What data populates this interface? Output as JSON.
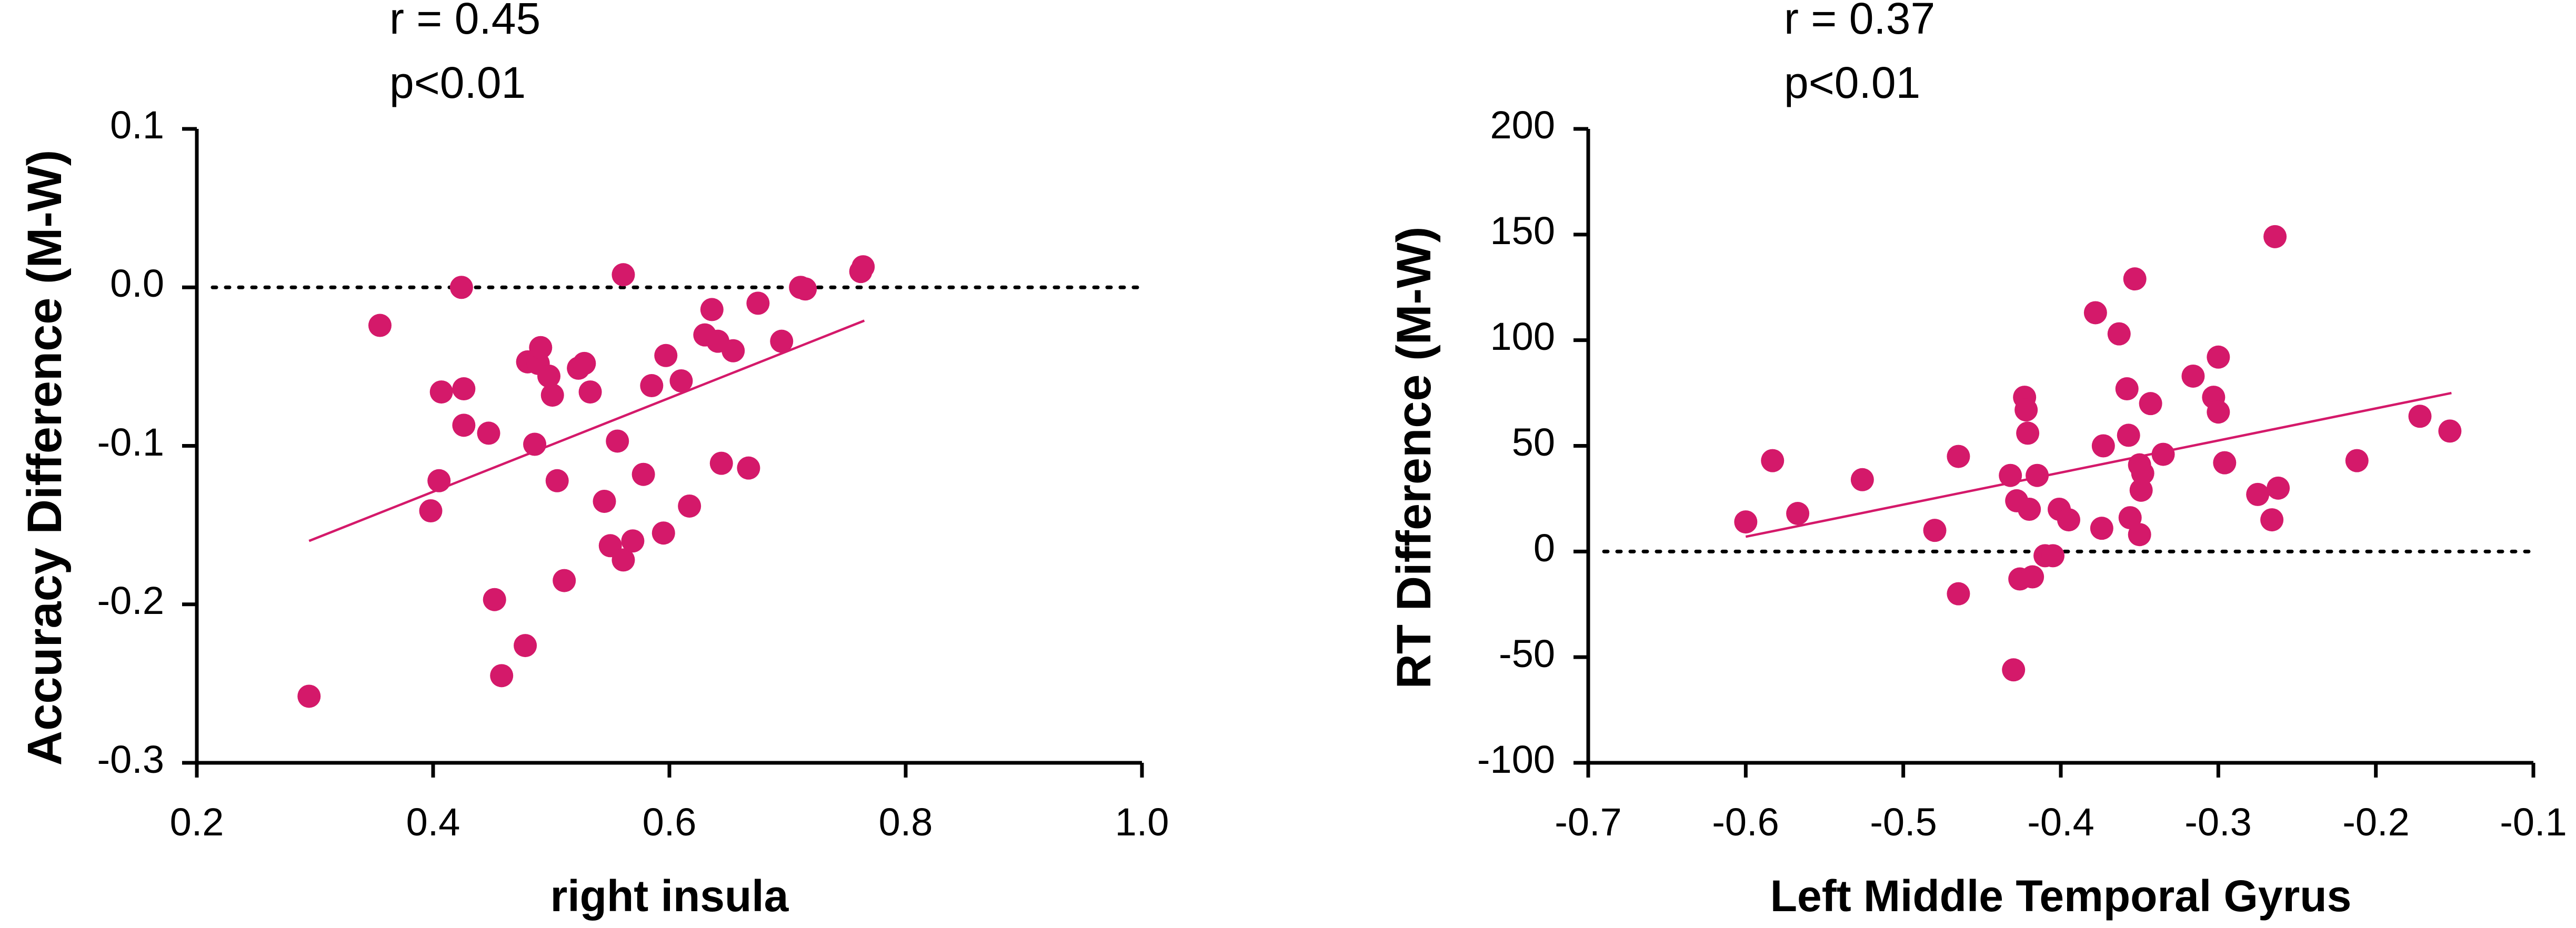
{
  "chart_data": [
    {
      "type": "scatter",
      "title": "",
      "annotation": [
        "r = 0.45",
        "p<0.01"
      ],
      "xlabel": "right insula",
      "ylabel": "Accuracy Difference (M-W)",
      "xlim": [
        0.2,
        1.0
      ],
      "ylim": [
        -0.3,
        0.1
      ],
      "xticks": [
        0.2,
        0.4,
        0.6,
        0.8,
        1.0
      ],
      "xtick_labels": [
        "0.2",
        "0.4",
        "0.6",
        "0.8",
        "1.0"
      ],
      "yticks": [
        -0.3,
        -0.2,
        -0.1,
        0.0,
        0.1
      ],
      "ytick_labels": [
        "-0.3",
        "-0.2",
        "-0.1",
        "0.0",
        "0.1"
      ],
      "reference_line": {
        "y": 0,
        "style": "dotted"
      },
      "fit_line": {
        "x": [
          0.295,
          0.765
        ],
        "y": [
          -0.16,
          -0.021
        ]
      },
      "marker_color": "#d4196a",
      "grid": false,
      "points": [
        {
          "x": 0.295,
          "y": -0.258
        },
        {
          "x": 0.355,
          "y": -0.024
        },
        {
          "x": 0.398,
          "y": -0.141
        },
        {
          "x": 0.405,
          "y": -0.122
        },
        {
          "x": 0.407,
          "y": -0.066
        },
        {
          "x": 0.424,
          "y": 0.0
        },
        {
          "x": 0.426,
          "y": -0.064
        },
        {
          "x": 0.426,
          "y": -0.087
        },
        {
          "x": 0.447,
          "y": -0.092
        },
        {
          "x": 0.452,
          "y": -0.197
        },
        {
          "x": 0.458,
          "y": -0.245
        },
        {
          "x": 0.478,
          "y": -0.226
        },
        {
          "x": 0.48,
          "y": -0.047
        },
        {
          "x": 0.486,
          "y": -0.099
        },
        {
          "x": 0.489,
          "y": -0.048
        },
        {
          "x": 0.491,
          "y": -0.038
        },
        {
          "x": 0.498,
          "y": -0.056
        },
        {
          "x": 0.501,
          "y": -0.068
        },
        {
          "x": 0.505,
          "y": -0.122
        },
        {
          "x": 0.511,
          "y": -0.185
        },
        {
          "x": 0.523,
          "y": -0.051
        },
        {
          "x": 0.528,
          "y": -0.048
        },
        {
          "x": 0.533,
          "y": -0.066
        },
        {
          "x": 0.545,
          "y": -0.135
        },
        {
          "x": 0.55,
          "y": -0.163
        },
        {
          "x": 0.556,
          "y": -0.097
        },
        {
          "x": 0.561,
          "y": 0.008
        },
        {
          "x": 0.561,
          "y": -0.172
        },
        {
          "x": 0.569,
          "y": -0.16
        },
        {
          "x": 0.578,
          "y": -0.118
        },
        {
          "x": 0.585,
          "y": -0.062
        },
        {
          "x": 0.595,
          "y": -0.155
        },
        {
          "x": 0.597,
          "y": -0.043
        },
        {
          "x": 0.61,
          "y": -0.059
        },
        {
          "x": 0.617,
          "y": -0.138
        },
        {
          "x": 0.63,
          "y": -0.03
        },
        {
          "x": 0.636,
          "y": -0.014
        },
        {
          "x": 0.641,
          "y": -0.034
        },
        {
          "x": 0.644,
          "y": -0.111
        },
        {
          "x": 0.654,
          "y": -0.04
        },
        {
          "x": 0.667,
          "y": -0.114
        },
        {
          "x": 0.675,
          "y": -0.01
        },
        {
          "x": 0.695,
          "y": -0.034
        },
        {
          "x": 0.711,
          "y": 0.0
        },
        {
          "x": 0.715,
          "y": -0.001
        },
        {
          "x": 0.762,
          "y": 0.01
        },
        {
          "x": 0.764,
          "y": 0.013
        }
      ]
    },
    {
      "type": "scatter",
      "title": "",
      "annotation": [
        "r = 0.37",
        "p<0.01"
      ],
      "xlabel": "Left Middle Temporal Gyrus",
      "ylabel": "RT Difference (M-W)",
      "xlim": [
        -0.7,
        -0.1
      ],
      "ylim": [
        -100,
        200
      ],
      "xticks": [
        -0.7,
        -0.6,
        -0.5,
        -0.4,
        -0.3,
        -0.2,
        -0.1
      ],
      "xtick_labels": [
        "-0.7",
        "-0.6",
        "-0.5",
        "-0.4",
        "-0.3",
        "-0.2",
        "-0.1"
      ],
      "yticks": [
        -100,
        -50,
        0,
        50,
        100,
        150,
        200
      ],
      "ytick_labels": [
        "-100",
        "-50",
        "0",
        "50",
        "100",
        "150",
        "200"
      ],
      "reference_line": {
        "y": 0,
        "style": "dotted"
      },
      "fit_line": {
        "x": [
          -0.6,
          -0.152
        ],
        "y": [
          7,
          75
        ]
      },
      "marker_color": "#d4196a",
      "grid": false,
      "points": [
        {
          "x": -0.6,
          "y": 14
        },
        {
          "x": -0.583,
          "y": 43
        },
        {
          "x": -0.567,
          "y": 18
        },
        {
          "x": -0.526,
          "y": 34
        },
        {
          "x": -0.48,
          "y": 10
        },
        {
          "x": -0.465,
          "y": 45
        },
        {
          "x": -0.465,
          "y": -20
        },
        {
          "x": -0.432,
          "y": 36
        },
        {
          "x": -0.43,
          "y": -56
        },
        {
          "x": -0.428,
          "y": 24
        },
        {
          "x": -0.426,
          "y": -13
        },
        {
          "x": -0.423,
          "y": 73
        },
        {
          "x": -0.422,
          "y": 67
        },
        {
          "x": -0.421,
          "y": 56
        },
        {
          "x": -0.42,
          "y": 20
        },
        {
          "x": -0.418,
          "y": -12
        },
        {
          "x": -0.415,
          "y": 36
        },
        {
          "x": -0.41,
          "y": -2
        },
        {
          "x": -0.405,
          "y": -2
        },
        {
          "x": -0.401,
          "y": 20
        },
        {
          "x": -0.395,
          "y": 15
        },
        {
          "x": -0.378,
          "y": 113
        },
        {
          "x": -0.374,
          "y": 11
        },
        {
          "x": -0.373,
          "y": 50
        },
        {
          "x": -0.363,
          "y": 103
        },
        {
          "x": -0.358,
          "y": 77
        },
        {
          "x": -0.357,
          "y": 55
        },
        {
          "x": -0.356,
          "y": 16
        },
        {
          "x": -0.353,
          "y": 129
        },
        {
          "x": -0.35,
          "y": 41
        },
        {
          "x": -0.35,
          "y": 8
        },
        {
          "x": -0.349,
          "y": 29
        },
        {
          "x": -0.348,
          "y": 37
        },
        {
          "x": -0.343,
          "y": 70
        },
        {
          "x": -0.335,
          "y": 46
        },
        {
          "x": -0.316,
          "y": 83
        },
        {
          "x": -0.303,
          "y": 73
        },
        {
          "x": -0.3,
          "y": 92
        },
        {
          "x": -0.3,
          "y": 66
        },
        {
          "x": -0.296,
          "y": 42
        },
        {
          "x": -0.275,
          "y": 27
        },
        {
          "x": -0.266,
          "y": 15
        },
        {
          "x": -0.264,
          "y": 149
        },
        {
          "x": -0.262,
          "y": 30
        },
        {
          "x": -0.212,
          "y": 43
        },
        {
          "x": -0.172,
          "y": 64
        },
        {
          "x": -0.153,
          "y": 57
        }
      ]
    }
  ]
}
